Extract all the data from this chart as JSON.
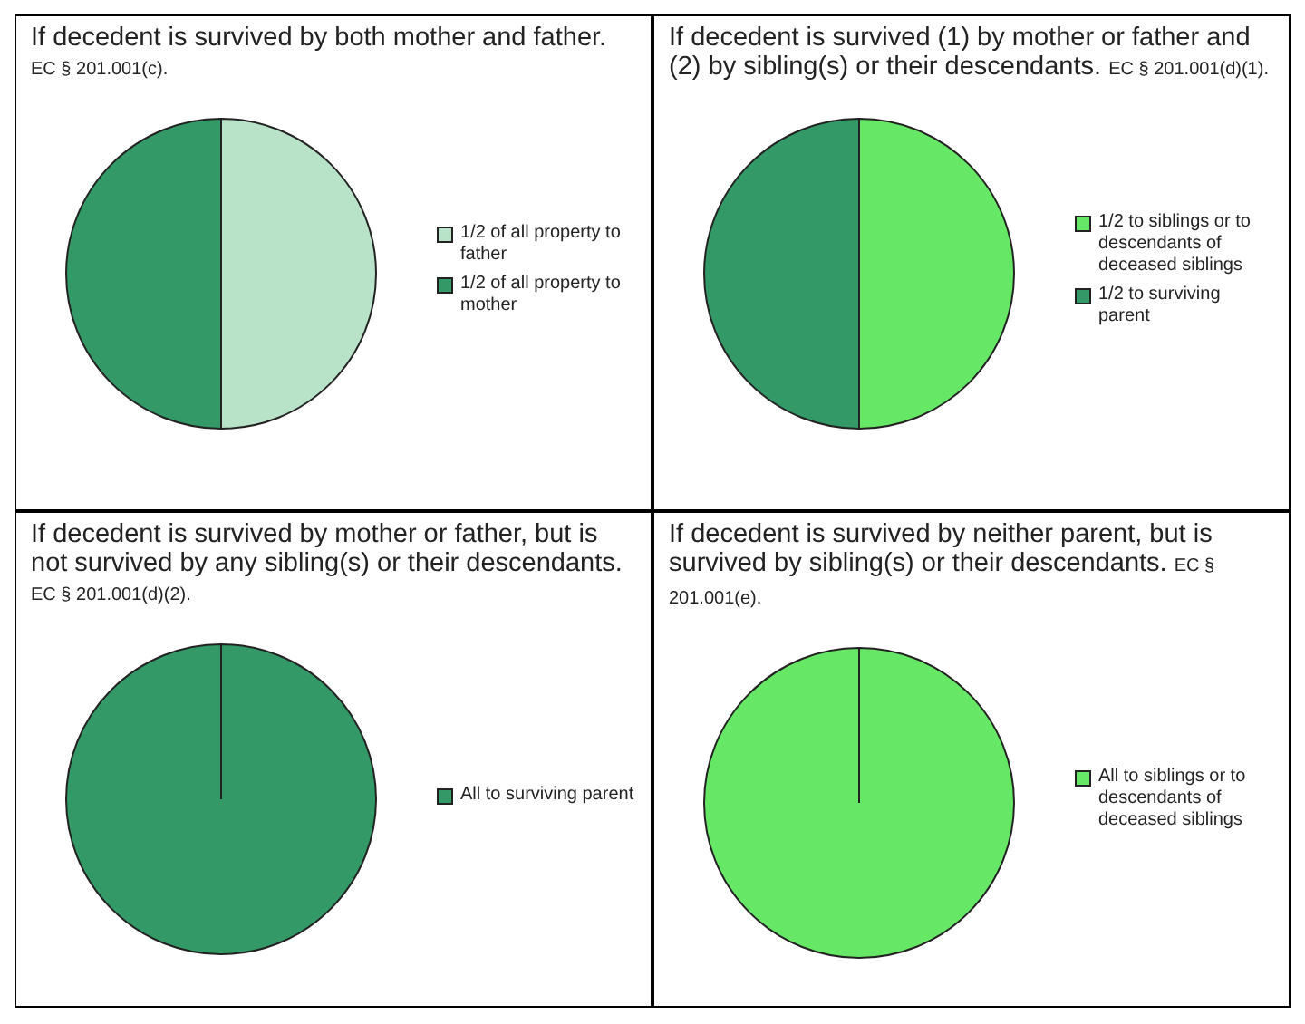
{
  "chart_data": [
    {
      "type": "pie",
      "title": "If decedent is survived by both mother and father.",
      "subtitle": "EC § 201.001(c).",
      "categories": [
        "1/2 of all property to father",
        "1/2 of all property to mother"
      ],
      "values": [
        50,
        50
      ],
      "colors": [
        "#b9e3c8",
        "#339966"
      ],
      "legend": "right"
    },
    {
      "type": "pie",
      "title": "If decedent is survived (1) by mother or father and (2) by sibling(s) or their descendants.",
      "subtitle": "EC § 201.001(d)(1).",
      "categories": [
        "1/2 to siblings or to descendants of deceased siblings",
        "1/2 to surviving parent"
      ],
      "values": [
        50,
        50
      ],
      "colors": [
        "#66e866",
        "#339966"
      ],
      "legend": "right"
    },
    {
      "type": "pie",
      "title": "If decedent is survived by mother or father, but is not survived by any sibling(s) or their descendants.",
      "subtitle": "EC § 201.001(d)(2).",
      "categories": [
        "All to surviving parent"
      ],
      "values": [
        100
      ],
      "colors": [
        "#339966"
      ],
      "legend": "right"
    },
    {
      "type": "pie",
      "title": "If decedent is survived by neither parent, but is survived by sibling(s) or their descendants.",
      "subtitle": "EC § 201.001(e).",
      "categories": [
        "All to siblings or to descendants of deceased siblings"
      ],
      "values": [
        100
      ],
      "colors": [
        "#66e866"
      ],
      "legend": "right"
    }
  ]
}
